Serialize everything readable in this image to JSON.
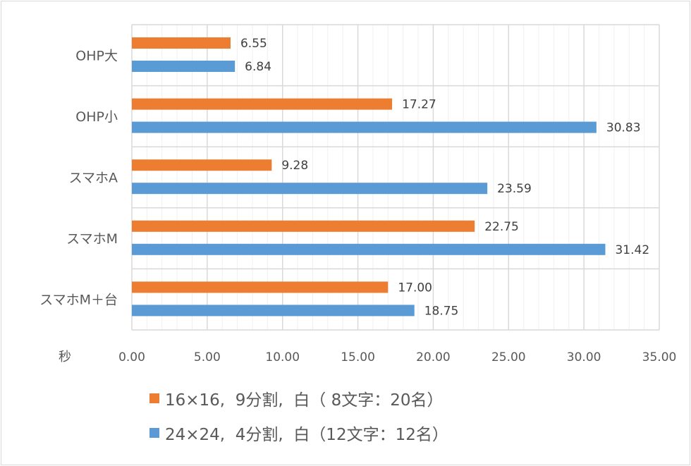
{
  "chart_data": {
    "type": "bar",
    "orientation": "horizontal",
    "categories": [
      "OHP大",
      "OHP小",
      "スマホA",
      "スマホM",
      "スマホM＋台"
    ],
    "series": [
      {
        "name": "16×16, 9分割, 白（ 8文字：20名）",
        "color": "#ED7D31",
        "values": [
          6.55,
          17.27,
          9.28,
          22.75,
          17.0
        ]
      },
      {
        "name": "24×24, 4分割, 白（12文字：12名）",
        "color": "#5B9BD5",
        "values": [
          6.84,
          30.83,
          23.59,
          31.42,
          18.75
        ]
      }
    ],
    "data_labels": [
      [
        "6.55",
        "17.27",
        "9.28",
        "22.75",
        "17.00"
      ],
      [
        "6.84",
        "30.83",
        "23.59",
        "31.42",
        "18.75"
      ]
    ],
    "xlabel": "秒",
    "xlim": [
      0,
      35
    ],
    "x_ticks": [
      "0.00",
      "5.00",
      "10.00",
      "15.00",
      "20.00",
      "25.00",
      "30.00",
      "35.00"
    ],
    "major_step": 5,
    "minor_step": 1,
    "grid": true,
    "legend_placement": "bottom",
    "legend": [
      "16×16,  9分割,  白（ 8文字：20名）",
      "24×24,  4分割,  白（12文字：12名）"
    ]
  }
}
